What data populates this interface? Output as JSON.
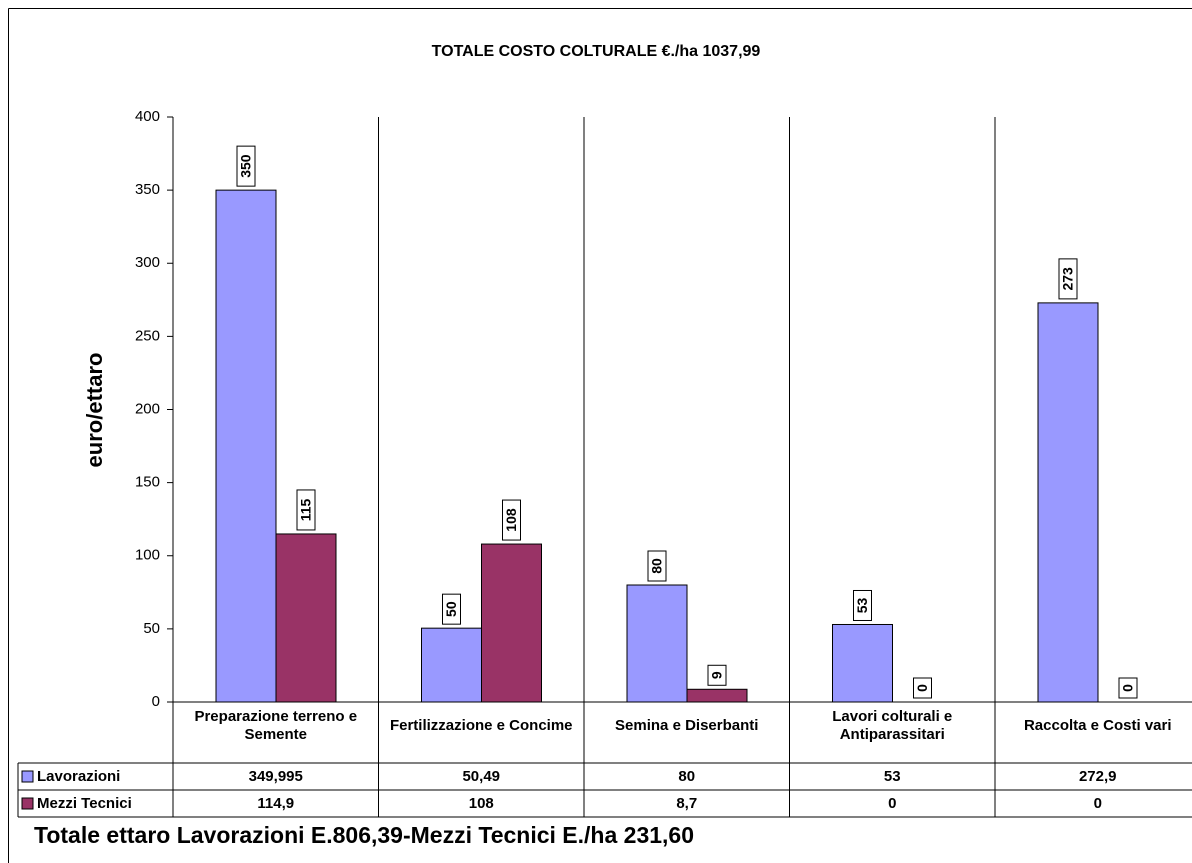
{
  "chart_data": {
    "type": "bar",
    "title": "TOTALE COSTO COLTURALE   €./ha 1037,99",
    "y_label": "euro/ettaro",
    "footer": "Totale ettaro Lavorazioni E.806,39-Mezzi Tecnici E./ha 231,60",
    "categories": [
      "Preparazione terreno e Semente",
      "Fertilizzazione e Concime",
      "Semina e Diserbanti",
      "Lavori colturali e Antiparassitari",
      "Raccolta e Costi vari"
    ],
    "series": [
      {
        "name": "Lavorazioni",
        "color": "#9999ff",
        "values": [
          349.995,
          50.49,
          80,
          53,
          272.9
        ],
        "value_labels": [
          "350",
          "50",
          "80",
          "53",
          "273"
        ],
        "table_labels": [
          "349,995",
          "50,49",
          "80",
          "53",
          "272,9"
        ]
      },
      {
        "name": "Mezzi Tecnici",
        "color": "#993366",
        "values": [
          114.9,
          108,
          8.7,
          0,
          0
        ],
        "value_labels": [
          "115",
          "108",
          "9",
          "0",
          "0"
        ],
        "table_labels": [
          "114,9",
          "108",
          "8,7",
          "0",
          "0"
        ]
      }
    ],
    "ylim": [
      0,
      400
    ],
    "yticks": [
      0,
      50,
      100,
      150,
      200,
      250,
      300,
      350,
      400
    ],
    "grid": "categories"
  }
}
